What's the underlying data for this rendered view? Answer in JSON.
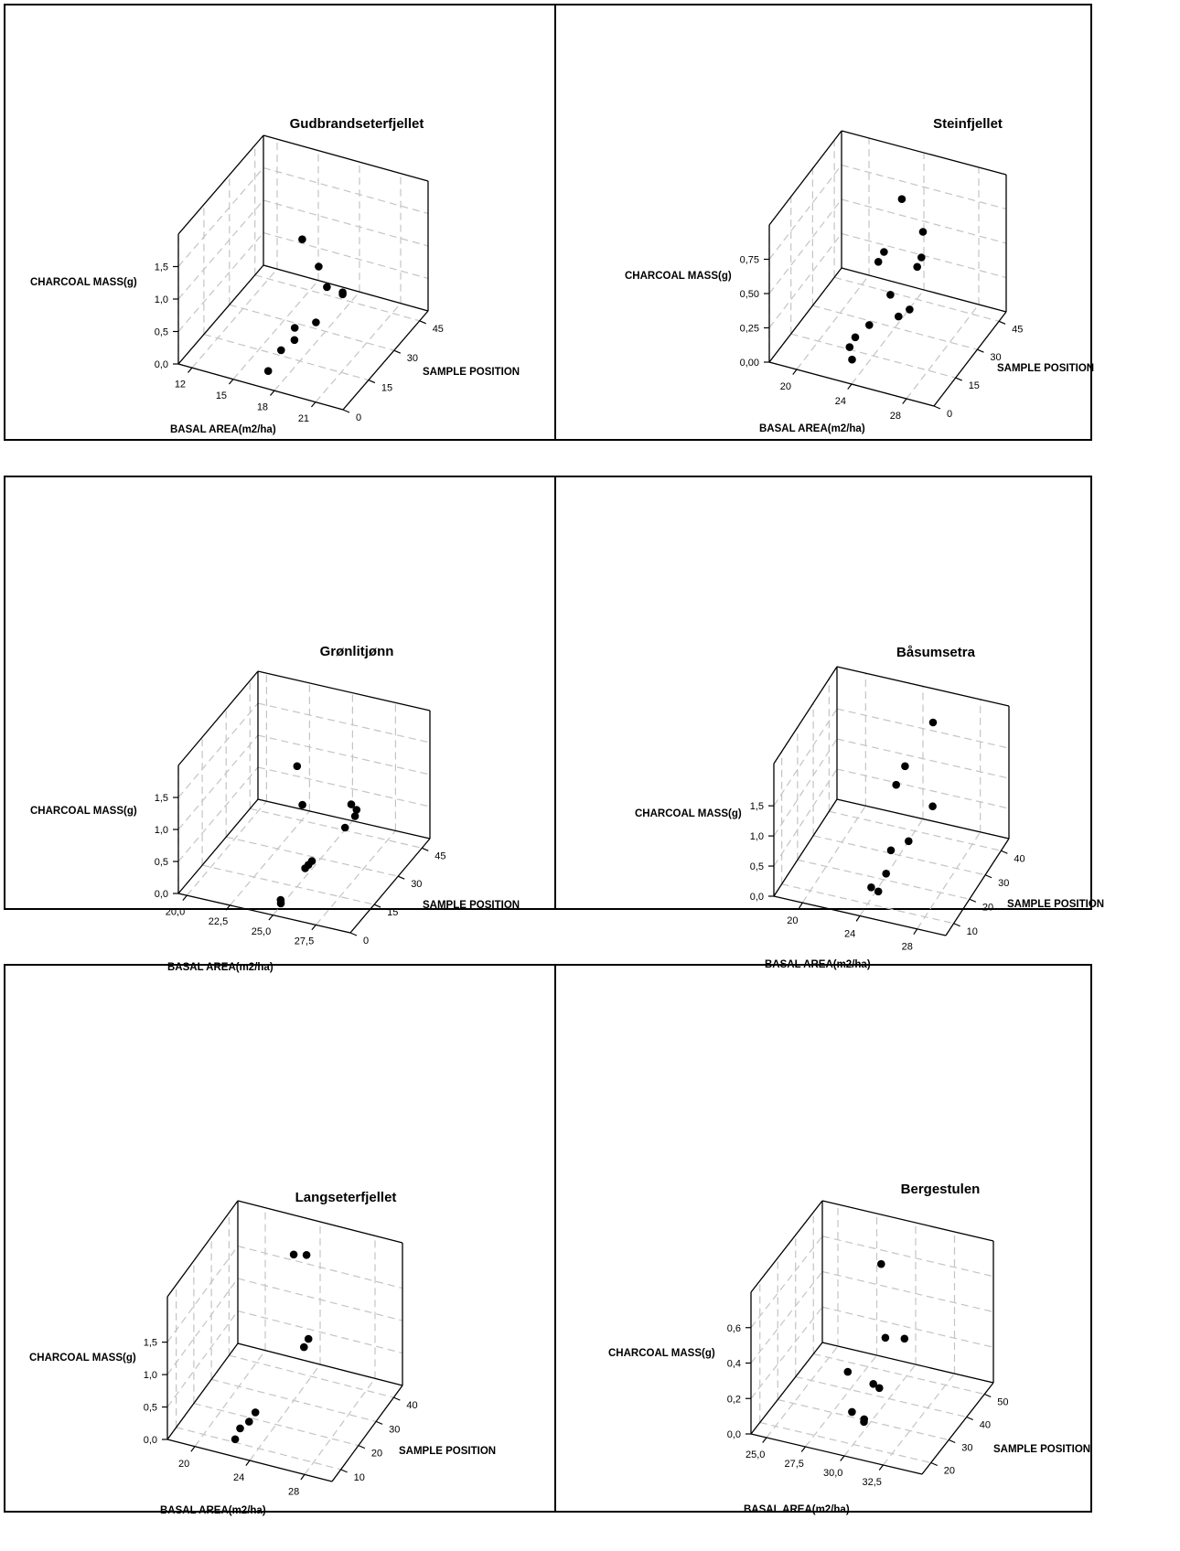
{
  "chart_data": [
    {
      "type": "scatter3d",
      "title": "Gudbrandseterfjellet",
      "xlabel": "BASAL AREA(m2/ha)",
      "ylabel": "SAMPLE POSITION",
      "zlabel": "CHARCOAL MASS(g)",
      "x_ticks": [
        "12",
        "15",
        "18",
        "21"
      ],
      "y_ticks": [
        "0",
        "15",
        "30",
        "45"
      ],
      "z_ticks": [
        "0,0",
        "0,5",
        "1,0",
        "1,5"
      ],
      "xlim": [
        11,
        23
      ],
      "ylim": [
        0,
        50
      ],
      "zlim": [
        0,
        2
      ],
      "points": [
        {
          "x": 17.3,
          "y": 22,
          "z": 1.62
        },
        {
          "x": 18.0,
          "y": 26,
          "z": 1.12
        },
        {
          "x": 18.6,
          "y": 26,
          "z": 0.84
        },
        {
          "x": 19.5,
          "y": 28,
          "z": 0.75
        },
        {
          "x": 19.5,
          "y": 28,
          "z": 0.72
        },
        {
          "x": 18.3,
          "y": 22,
          "z": 0.4
        },
        {
          "x": 17.0,
          "y": 20,
          "z": 0.3
        },
        {
          "x": 17.6,
          "y": 15,
          "z": 0.3
        },
        {
          "x": 17.0,
          "y": 12,
          "z": 0.2
        },
        {
          "x": 16.8,
          "y": 6,
          "z": 0.05
        }
      ]
    },
    {
      "type": "scatter3d",
      "title": "Steinfjellet",
      "xlabel": "BASAL AREA(m2/ha)",
      "ylabel": "SAMPLE POSITION",
      "zlabel": "CHARCOAL MASS(g)",
      "x_ticks": [
        "20",
        "24",
        "28"
      ],
      "y_ticks": [
        "0",
        "15",
        "30",
        "45"
      ],
      "z_ticks": [
        "0,00",
        "0,25",
        "0,50",
        "0,75"
      ],
      "xlim": [
        18,
        30
      ],
      "ylim": [
        0,
        50
      ],
      "zlim": [
        0,
        1
      ],
      "points": [
        {
          "x": 24.5,
          "y": 30,
          "z": 0.95
        },
        {
          "x": 25.2,
          "y": 38,
          "z": 0.62
        },
        {
          "x": 25.4,
          "y": 35,
          "z": 0.48
        },
        {
          "x": 25.2,
          "y": 34,
          "z": 0.42
        },
        {
          "x": 23.2,
          "y": 30,
          "z": 0.53
        },
        {
          "x": 23.0,
          "y": 28,
          "z": 0.48
        },
        {
          "x": 24.3,
          "y": 24,
          "z": 0.33
        },
        {
          "x": 25.7,
          "y": 24,
          "z": 0.26
        },
        {
          "x": 25.1,
          "y": 22,
          "z": 0.22
        },
        {
          "x": 23.6,
          "y": 16,
          "z": 0.2
        },
        {
          "x": 23.0,
          "y": 12,
          "z": 0.15
        },
        {
          "x": 22.8,
          "y": 10,
          "z": 0.1
        },
        {
          "x": 23.4,
          "y": 6,
          "z": 0.08
        }
      ]
    },
    {
      "type": "scatter3d",
      "title": "Grønlitjønn",
      "xlabel": "BASAL AREA(m2/ha)",
      "ylabel": "SAMPLE POSITION",
      "zlabel": "CHARCOAL MASS(g)",
      "x_ticks": [
        "20,0",
        "22,5",
        "25,0",
        "27,5"
      ],
      "y_ticks": [
        "0",
        "15",
        "30",
        "45"
      ],
      "z_ticks": [
        "0,0",
        "0,5",
        "1,0",
        "1,5"
      ],
      "xlim": [
        19.5,
        29.5
      ],
      "ylim": [
        0,
        50
      ],
      "zlim": [
        0,
        2
      ],
      "points": [
        {
          "x": 24.0,
          "y": 26,
          "z": 1.5
        },
        {
          "x": 24.4,
          "y": 25,
          "z": 0.95
        },
        {
          "x": 26.5,
          "y": 33,
          "z": 0.85
        },
        {
          "x": 26.9,
          "y": 32,
          "z": 0.82
        },
        {
          "x": 26.9,
          "y": 31,
          "z": 0.75
        },
        {
          "x": 26.6,
          "y": 28,
          "z": 0.64
        },
        {
          "x": 25.6,
          "y": 18,
          "z": 0.35
        },
        {
          "x": 25.4,
          "y": 18,
          "z": 0.28
        },
        {
          "x": 25.3,
          "y": 17,
          "z": 0.25
        },
        {
          "x": 24.8,
          "y": 7,
          "z": 0.02
        },
        {
          "x": 24.9,
          "y": 6,
          "z": 0.0
        }
      ]
    },
    {
      "type": "scatter3d",
      "title": "Båsumsetra",
      "xlabel": "BASAL AREA(m2/ha)",
      "ylabel": "SAMPLE POSITION",
      "zlabel": "CHARCOAL MASS(g)",
      "x_ticks": [
        "20",
        "24",
        "28"
      ],
      "y_ticks": [
        "10",
        "20",
        "30",
        "40"
      ],
      "z_ticks": [
        "0,0",
        "0,5",
        "1,0",
        "1,5"
      ],
      "xlim": [
        18,
        30
      ],
      "ylim": [
        5,
        45
      ],
      "zlim": [
        0,
        2.2
      ],
      "points": [
        {
          "x": 25.8,
          "y": 35,
          "z": 2.1
        },
        {
          "x": 24.4,
          "y": 30,
          "z": 1.5
        },
        {
          "x": 24.0,
          "y": 28,
          "z": 1.25
        },
        {
          "x": 26.0,
          "y": 33,
          "z": 0.8
        },
        {
          "x": 25.2,
          "y": 25,
          "z": 0.5
        },
        {
          "x": 24.3,
          "y": 22,
          "z": 0.42
        },
        {
          "x": 24.4,
          "y": 18,
          "z": 0.2
        },
        {
          "x": 23.8,
          "y": 14,
          "z": 0.1
        },
        {
          "x": 24.3,
          "y": 14,
          "z": 0.06
        }
      ]
    },
    {
      "type": "scatter3d",
      "title": "Langseterfjellet",
      "xlabel": "BASAL AREA(m2/ha)",
      "ylabel": "SAMPLE POSITION",
      "zlabel": "CHARCOAL MASS(g)",
      "x_ticks": [
        "20",
        "24",
        "28"
      ],
      "y_ticks": [
        "10",
        "20",
        "30",
        "40"
      ],
      "z_ticks": [
        "0,0",
        "0,5",
        "1,0",
        "1,5"
      ],
      "xlim": [
        18,
        30
      ],
      "ylim": [
        5,
        45
      ],
      "zlim": [
        0,
        2.2
      ],
      "points": [
        {
          "x": 24.0,
          "y": 30,
          "z": 2.25
        },
        {
          "x": 24.8,
          "y": 31,
          "z": 2.25
        },
        {
          "x": 25.2,
          "y": 29,
          "z": 1.05
        },
        {
          "x": 25.0,
          "y": 28,
          "z": 0.95
        },
        {
          "x": 23.0,
          "y": 16,
          "z": 0.28
        },
        {
          "x": 22.8,
          "y": 14,
          "z": 0.2
        },
        {
          "x": 22.4,
          "y": 12,
          "z": 0.15
        },
        {
          "x": 22.3,
          "y": 10,
          "z": 0.05
        }
      ]
    },
    {
      "type": "scatter3d",
      "title": "Bergestulen",
      "xlabel": "BASAL AREA(m2/ha)",
      "ylabel": "SAMPLE POSITION",
      "zlabel": "CHARCOAL MASS(g)",
      "x_ticks": [
        "25,0",
        "27,5",
        "30,0",
        "32,5"
      ],
      "y_ticks": [
        "20",
        "30",
        "40",
        "50"
      ],
      "z_ticks": [
        "0,0",
        "0,2",
        "0,4",
        "0,6"
      ],
      "xlim": [
        24,
        35
      ],
      "ylim": [
        15,
        55
      ],
      "zlim": [
        0,
        0.8
      ],
      "points": [
        {
          "x": 29.5,
          "y": 40,
          "z": 0.75
        },
        {
          "x": 30.0,
          "y": 38,
          "z": 0.37
        },
        {
          "x": 31.0,
          "y": 40,
          "z": 0.36
        },
        {
          "x": 28.5,
          "y": 30,
          "z": 0.25
        },
        {
          "x": 29.8,
          "y": 33,
          "z": 0.17
        },
        {
          "x": 30.3,
          "y": 32,
          "z": 0.17
        },
        {
          "x": 29.0,
          "y": 28,
          "z": 0.06
        },
        {
          "x": 29.9,
          "y": 27,
          "z": 0.05
        },
        {
          "x": 30.0,
          "y": 26,
          "z": 0.05
        }
      ]
    }
  ]
}
